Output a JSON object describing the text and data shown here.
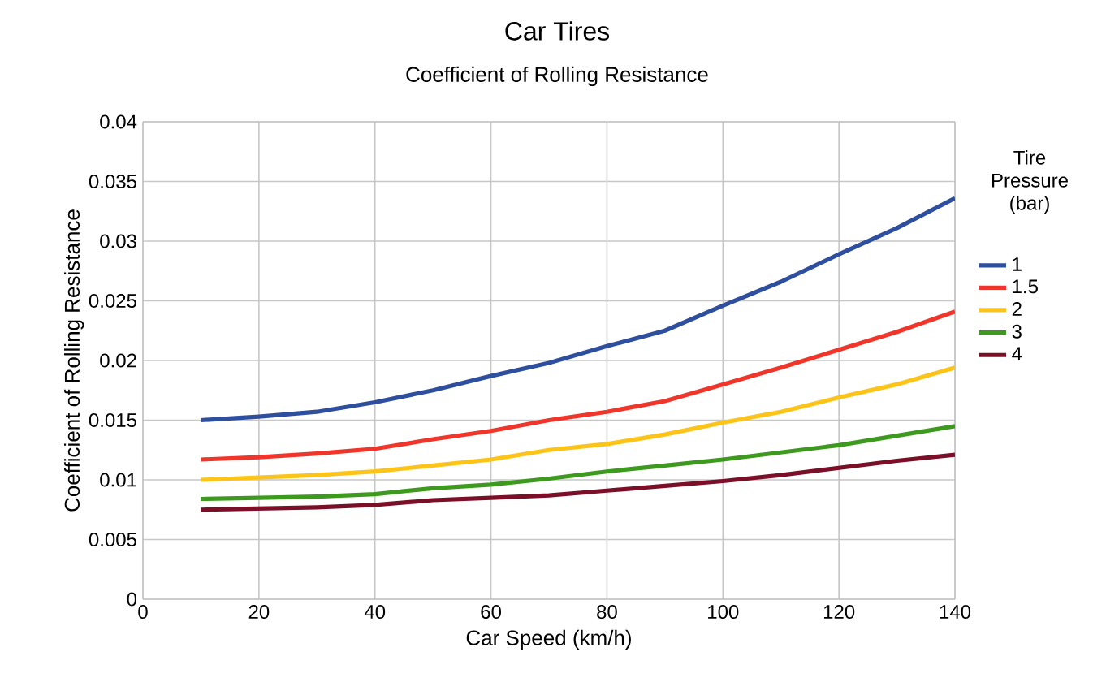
{
  "chart_data": {
    "type": "line",
    "title": "Car Tires",
    "subtitle": "Coefficient of Rolling Resistance",
    "xlabel": "Car Speed (km/h)",
    "ylabel": "Coefficient of Rolling Resistance",
    "legend_title": "Tire Pressure (bar)",
    "x": [
      10,
      20,
      30,
      40,
      50,
      60,
      70,
      80,
      90,
      100,
      110,
      120,
      130,
      140
    ],
    "series": [
      {
        "name": "1",
        "color": "#2e4f9e",
        "values": [
          0.015,
          0.0153,
          0.0157,
          0.0165,
          0.0175,
          0.0187,
          0.0198,
          0.0212,
          0.0225,
          0.0246,
          0.0266,
          0.0289,
          0.0311,
          0.0336
        ]
      },
      {
        "name": "1.5",
        "color": "#f0362b",
        "values": [
          0.0117,
          0.0119,
          0.0122,
          0.0126,
          0.0134,
          0.0141,
          0.015,
          0.0157,
          0.0166,
          0.018,
          0.0194,
          0.0209,
          0.0224,
          0.0241
        ]
      },
      {
        "name": "2",
        "color": "#fcc419",
        "values": [
          0.01,
          0.0102,
          0.0104,
          0.0107,
          0.0112,
          0.0117,
          0.0125,
          0.013,
          0.0138,
          0.0148,
          0.0157,
          0.0169,
          0.018,
          0.0194
        ]
      },
      {
        "name": "3",
        "color": "#3d9a1e",
        "values": [
          0.0084,
          0.0085,
          0.0086,
          0.0088,
          0.0093,
          0.0096,
          0.0101,
          0.0107,
          0.0112,
          0.0117,
          0.0123,
          0.0129,
          0.0137,
          0.0145
        ]
      },
      {
        "name": "4",
        "color": "#7a0f27",
        "values": [
          0.0075,
          0.0076,
          0.0077,
          0.0079,
          0.0083,
          0.0085,
          0.0087,
          0.0091,
          0.0095,
          0.0099,
          0.0104,
          0.011,
          0.0116,
          0.0121
        ]
      }
    ],
    "xlim": [
      0,
      140
    ],
    "ylim": [
      0,
      0.04
    ],
    "xticks": [
      0,
      20,
      40,
      60,
      80,
      100,
      120,
      140
    ],
    "yticks": [
      0,
      0.005,
      0.01,
      0.015,
      0.02,
      0.025,
      0.03,
      0.035,
      0.04
    ],
    "grid": true,
    "legend": "right",
    "marker": "none",
    "line_style": "solid"
  }
}
